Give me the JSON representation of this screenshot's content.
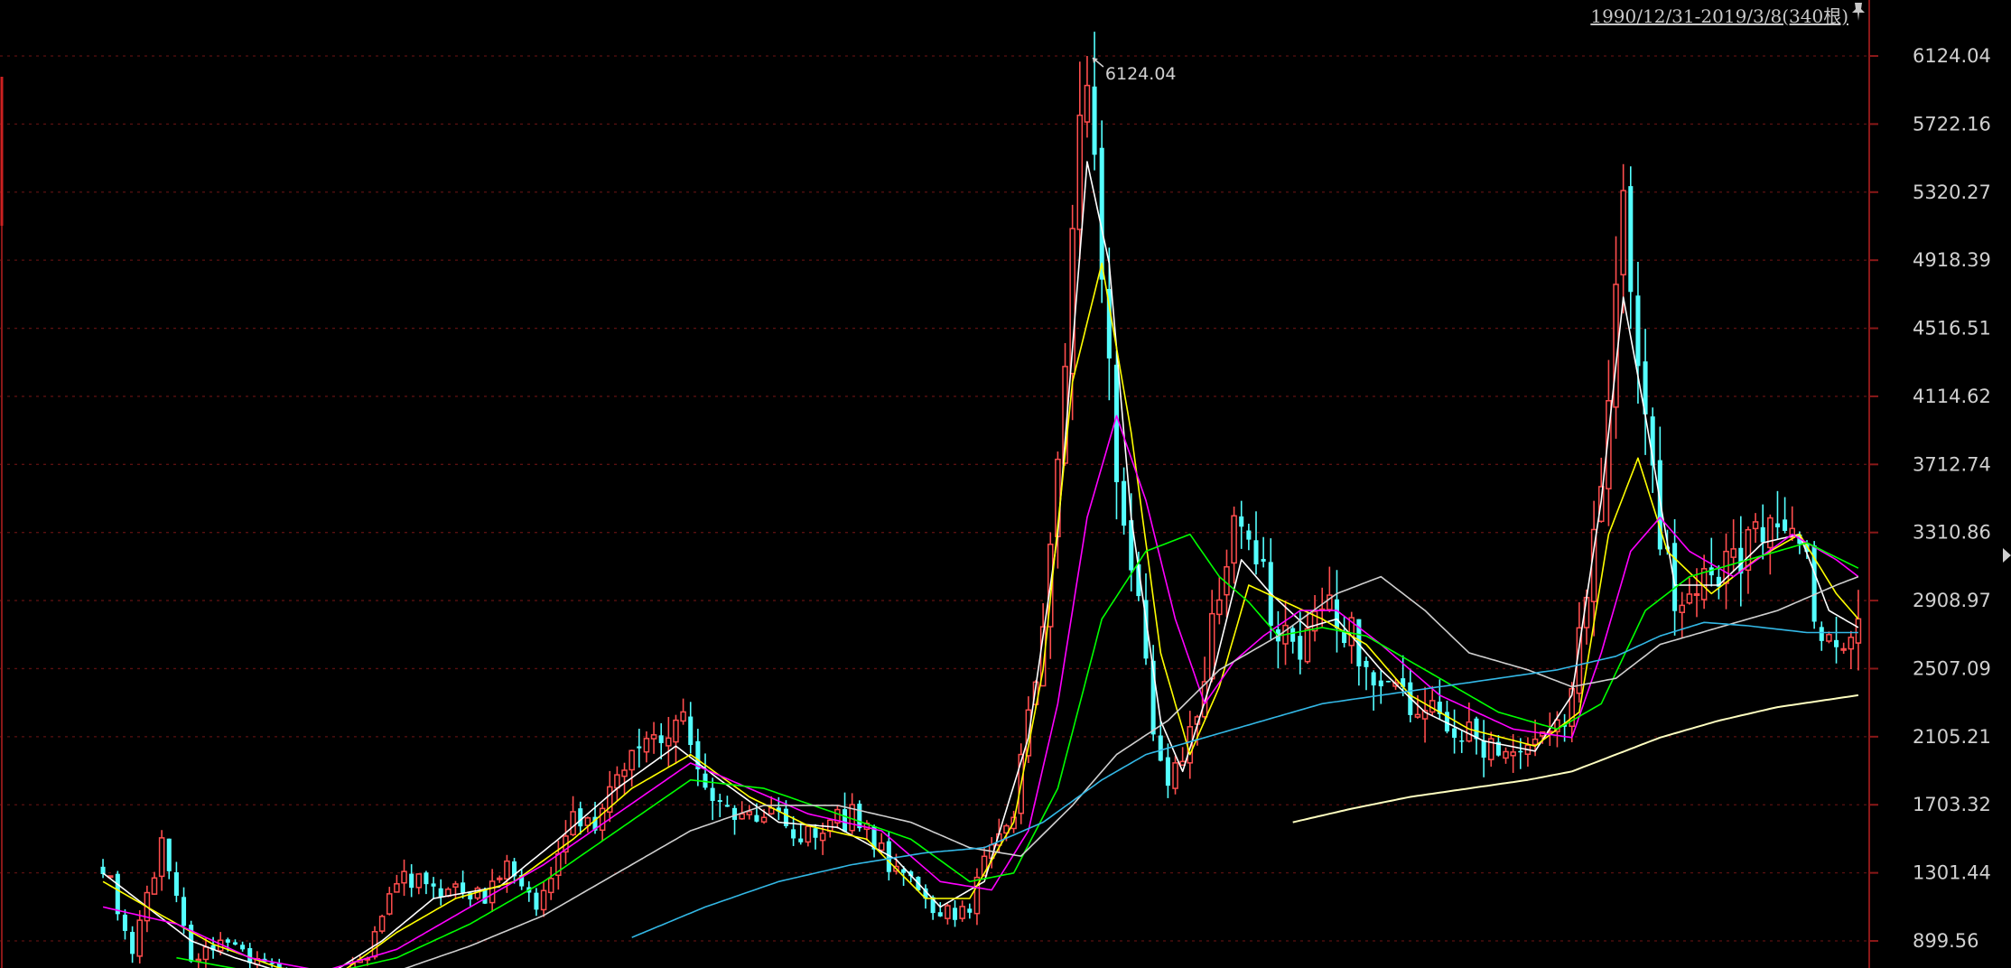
{
  "header": {
    "range_label": "1990/12/31-2019/3/8(340根)",
    "pin_icon": "pin-icon"
  },
  "chart_data": {
    "type": "candlestick",
    "title": "",
    "xlabel": "",
    "ylabel": "",
    "ylim": [
      700,
      6350
    ],
    "y_ticks": [
      "6124.04",
      "5722.16",
      "5320.27",
      "4918.39",
      "4516.51",
      "4114.62",
      "3712.74",
      "3310.86",
      "2908.97",
      "2507.09",
      "2105.21",
      "1703.32",
      "1301.44",
      "899.56"
    ],
    "grid": true,
    "annotation": {
      "label": "6124.04",
      "value": 6124.04
    },
    "colors": {
      "up": "#ff4d4d",
      "down": "#54ffff",
      "ma5": "#ffffff",
      "ma10": "#ffff00",
      "ma20": "#ff00ff",
      "ma30": "#00ff00",
      "ma60": "#cfcfcf",
      "ma120": "#33b8e6",
      "ma250": "#ffffc0",
      "grid": "#5a1010",
      "axis": "#8a1818"
    },
    "price_path": [
      [
        0,
        1350
      ],
      [
        4,
        850
      ],
      [
        8,
        1450
      ],
      [
        12,
        800
      ],
      [
        16,
        880
      ],
      [
        22,
        750
      ],
      [
        26,
        680
      ],
      [
        32,
        660
      ],
      [
        36,
        800
      ],
      [
        40,
        1300
      ],
      [
        45,
        1200
      ],
      [
        52,
        1150
      ],
      [
        55,
        1350
      ],
      [
        59,
        1080
      ],
      [
        64,
        1700
      ],
      [
        67,
        1550
      ],
      [
        71,
        1900
      ],
      [
        74,
        2050
      ],
      [
        79,
        2180
      ],
      [
        83,
        1800
      ],
      [
        86,
        1600
      ],
      [
        90,
        1700
      ],
      [
        94,
        1480
      ],
      [
        100,
        1600
      ],
      [
        102,
        1650
      ],
      [
        107,
        1350
      ],
      [
        111,
        1200
      ],
      [
        114,
        1050
      ],
      [
        118,
        1100
      ],
      [
        120,
        1350
      ],
      [
        124,
        1700
      ],
      [
        127,
        2500
      ],
      [
        130,
        3600
      ],
      [
        133,
        5600
      ],
      [
        134,
        6050
      ],
      [
        136,
        4800
      ],
      [
        138,
        3500
      ],
      [
        140,
        3100
      ],
      [
        143,
        2200
      ],
      [
        145,
        1750
      ],
      [
        148,
        2100
      ],
      [
        151,
        2700
      ],
      [
        154,
        3350
      ],
      [
        157,
        3100
      ],
      [
        159,
        2900
      ],
      [
        162,
        2600
      ],
      [
        165,
        2800
      ],
      [
        167,
        2850
      ],
      [
        170,
        2700
      ],
      [
        174,
        2450
      ],
      [
        178,
        2300
      ],
      [
        183,
        2150
      ],
      [
        188,
        2050
      ],
      [
        194,
        2000
      ],
      [
        199,
        2150
      ],
      [
        203,
        3300
      ],
      [
        206,
        4600
      ],
      [
        207,
        5080
      ],
      [
        209,
        4100
      ],
      [
        212,
        3300
      ],
      [
        215,
        2800
      ],
      [
        219,
        3050
      ],
      [
        224,
        3200
      ],
      [
        229,
        3450
      ],
      [
        231,
        3250
      ],
      [
        234,
        2750
      ],
      [
        237,
        2550
      ],
      [
        239,
        2850
      ]
    ],
    "ma_paths": {
      "ma5": [
        [
          0,
          1300
        ],
        [
          6,
          1100
        ],
        [
          12,
          900
        ],
        [
          18,
          800
        ],
        [
          24,
          720
        ],
        [
          30,
          680
        ],
        [
          38,
          900
        ],
        [
          45,
          1150
        ],
        [
          54,
          1220
        ],
        [
          62,
          1500
        ],
        [
          70,
          1800
        ],
        [
          78,
          2050
        ],
        [
          84,
          1850
        ],
        [
          92,
          1600
        ],
        [
          100,
          1570
        ],
        [
          108,
          1380
        ],
        [
          114,
          1100
        ],
        [
          120,
          1250
        ],
        [
          126,
          2100
        ],
        [
          130,
          3300
        ],
        [
          134,
          5500
        ],
        [
          137,
          4900
        ],
        [
          140,
          3400
        ],
        [
          144,
          2200
        ],
        [
          147,
          1900
        ],
        [
          151,
          2450
        ],
        [
          155,
          3150
        ],
        [
          159,
          2950
        ],
        [
          164,
          2750
        ],
        [
          168,
          2800
        ],
        [
          174,
          2500
        ],
        [
          180,
          2250
        ],
        [
          188,
          2080
        ],
        [
          195,
          2020
        ],
        [
          200,
          2350
        ],
        [
          204,
          3500
        ],
        [
          207,
          4700
        ],
        [
          210,
          4000
        ],
        [
          214,
          3000
        ],
        [
          220,
          3000
        ],
        [
          226,
          3250
        ],
        [
          231,
          3300
        ],
        [
          235,
          2850
        ],
        [
          239,
          2750
        ]
      ],
      "ma10": [
        [
          0,
          1250
        ],
        [
          8,
          1050
        ],
        [
          15,
          880
        ],
        [
          24,
          740
        ],
        [
          32,
          700
        ],
        [
          40,
          950
        ],
        [
          48,
          1150
        ],
        [
          56,
          1250
        ],
        [
          64,
          1500
        ],
        [
          72,
          1800
        ],
        [
          80,
          2000
        ],
        [
          88,
          1750
        ],
        [
          96,
          1580
        ],
        [
          104,
          1500
        ],
        [
          112,
          1150
        ],
        [
          118,
          1150
        ],
        [
          124,
          1600
        ],
        [
          128,
          2500
        ],
        [
          132,
          4200
        ],
        [
          136,
          4900
        ],
        [
          140,
          3900
        ],
        [
          144,
          2600
        ],
        [
          148,
          2000
        ],
        [
          152,
          2400
        ],
        [
          156,
          3000
        ],
        [
          161,
          2900
        ],
        [
          166,
          2800
        ],
        [
          172,
          2650
        ],
        [
          178,
          2350
        ],
        [
          186,
          2150
        ],
        [
          195,
          2050
        ],
        [
          201,
          2250
        ],
        [
          205,
          3300
        ],
        [
          209,
          3750
        ],
        [
          213,
          3200
        ],
        [
          219,
          2950
        ],
        [
          225,
          3150
        ],
        [
          231,
          3300
        ],
        [
          236,
          2950
        ],
        [
          239,
          2800
        ]
      ],
      "ma20": [
        [
          0,
          1100
        ],
        [
          10,
          1000
        ],
        [
          20,
          800
        ],
        [
          30,
          720
        ],
        [
          40,
          850
        ],
        [
          50,
          1100
        ],
        [
          60,
          1350
        ],
        [
          70,
          1650
        ],
        [
          80,
          1950
        ],
        [
          88,
          1800
        ],
        [
          96,
          1650
        ],
        [
          106,
          1550
        ],
        [
          114,
          1250
        ],
        [
          121,
          1200
        ],
        [
          126,
          1550
        ],
        [
          130,
          2300
        ],
        [
          134,
          3400
        ],
        [
          138,
          4000
        ],
        [
          142,
          3500
        ],
        [
          146,
          2800
        ],
        [
          150,
          2300
        ],
        [
          154,
          2550
        ],
        [
          158,
          2700
        ],
        [
          163,
          2850
        ],
        [
          168,
          2850
        ],
        [
          174,
          2650
        ],
        [
          182,
          2350
        ],
        [
          192,
          2150
        ],
        [
          200,
          2100
        ],
        [
          204,
          2600
        ],
        [
          208,
          3200
        ],
        [
          212,
          3400
        ],
        [
          216,
          3200
        ],
        [
          222,
          3050
        ],
        [
          230,
          3300
        ],
        [
          236,
          3150
        ],
        [
          239,
          3050
        ]
      ],
      "ma30": [
        [
          10,
          800
        ],
        [
          20,
          720
        ],
        [
          30,
          700
        ],
        [
          40,
          800
        ],
        [
          50,
          1000
        ],
        [
          60,
          1250
        ],
        [
          70,
          1550
        ],
        [
          80,
          1850
        ],
        [
          90,
          1800
        ],
        [
          100,
          1650
        ],
        [
          110,
          1500
        ],
        [
          118,
          1250
        ],
        [
          124,
          1300
        ],
        [
          130,
          1800
        ],
        [
          136,
          2800
        ],
        [
          142,
          3200
        ],
        [
          148,
          3300
        ],
        [
          152,
          3050
        ],
        [
          156,
          2900
        ],
        [
          160,
          2700
        ],
        [
          166,
          2750
        ],
        [
          172,
          2700
        ],
        [
          180,
          2500
        ],
        [
          190,
          2250
        ],
        [
          198,
          2150
        ],
        [
          204,
          2300
        ],
        [
          210,
          2850
        ],
        [
          216,
          3050
        ],
        [
          224,
          3150
        ],
        [
          232,
          3250
        ],
        [
          239,
          3100
        ]
      ],
      "ma60": [
        [
          30,
          690
        ],
        [
          40,
          720
        ],
        [
          50,
          870
        ],
        [
          60,
          1050
        ],
        [
          70,
          1300
        ],
        [
          80,
          1550
        ],
        [
          90,
          1700
        ],
        [
          100,
          1700
        ],
        [
          110,
          1600
        ],
        [
          118,
          1450
        ],
        [
          125,
          1400
        ],
        [
          132,
          1700
        ],
        [
          138,
          2000
        ],
        [
          145,
          2200
        ],
        [
          152,
          2500
        ],
        [
          160,
          2700
        ],
        [
          168,
          2950
        ],
        [
          174,
          3050
        ],
        [
          180,
          2850
        ],
        [
          186,
          2600
        ],
        [
          194,
          2500
        ],
        [
          200,
          2400
        ],
        [
          206,
          2450
        ],
        [
          212,
          2650
        ],
        [
          220,
          2750
        ],
        [
          228,
          2850
        ],
        [
          236,
          3000
        ],
        [
          239,
          3050
        ]
      ],
      "ma120": [
        [
          72,
          920
        ],
        [
          82,
          1100
        ],
        [
          92,
          1250
        ],
        [
          102,
          1350
        ],
        [
          112,
          1420
        ],
        [
          120,
          1450
        ],
        [
          128,
          1600
        ],
        [
          136,
          1850
        ],
        [
          142,
          2000
        ],
        [
          150,
          2100
        ],
        [
          158,
          2200
        ],
        [
          166,
          2300
        ],
        [
          174,
          2350
        ],
        [
          182,
          2400
        ],
        [
          190,
          2450
        ],
        [
          198,
          2500
        ],
        [
          206,
          2580
        ],
        [
          212,
          2700
        ],
        [
          218,
          2780
        ],
        [
          224,
          2760
        ],
        [
          232,
          2720
        ],
        [
          239,
          2720
        ]
      ],
      "ma250": [
        [
          162,
          1600
        ],
        [
          170,
          1680
        ],
        [
          178,
          1750
        ],
        [
          186,
          1800
        ],
        [
          194,
          1850
        ],
        [
          200,
          1900
        ],
        [
          206,
          2000
        ],
        [
          212,
          2100
        ],
        [
          220,
          2200
        ],
        [
          228,
          2280
        ],
        [
          239,
          2350
        ]
      ]
    }
  }
}
